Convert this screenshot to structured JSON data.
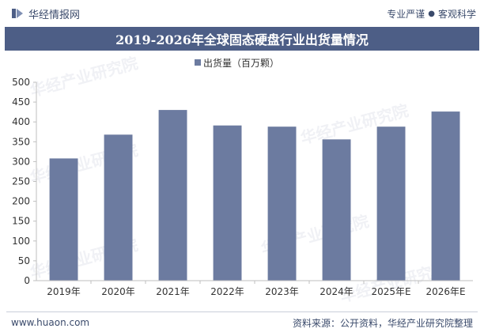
{
  "header": {
    "brand": "华经情报网",
    "slogan_left": "专业严谨",
    "slogan_right": "客观科学"
  },
  "footer": {
    "website": "www.huaon.com",
    "source": "资料来源：公开资料，华经产业研究院整理"
  },
  "watermark": "华经产业研究院",
  "colors": {
    "bar": "#6c7ba0",
    "title_band": "#4d5e86",
    "text": "#3a4a6b"
  },
  "chart_data": {
    "type": "bar",
    "title": "2019-2026年全球固态硬盘行业出货量情况",
    "categories": [
      "2019年",
      "2020年",
      "2021年",
      "2022年",
      "2023年",
      "2024年",
      "2025年E",
      "2026年E"
    ],
    "series": [
      {
        "name": "出货量（百万颗）",
        "values": [
          308,
          368,
          430,
          391,
          388,
          356,
          388,
          426
        ]
      }
    ],
    "ylim": [
      0,
      500
    ],
    "yticks": [
      0,
      50,
      100,
      150,
      200,
      250,
      300,
      350,
      400,
      450,
      500
    ],
    "legend_position": "top-center",
    "grid": false
  }
}
